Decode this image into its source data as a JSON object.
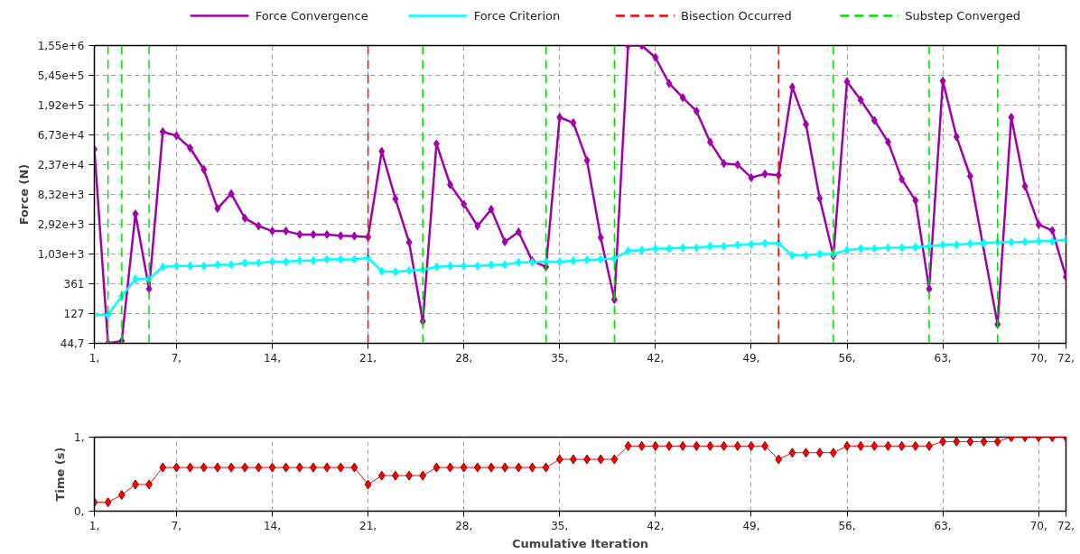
{
  "chart_data": [
    {
      "type": "line",
      "ylabel": "Force (N)",
      "log": "y",
      "grid": true,
      "legend": "top",
      "marker": "diamond",
      "line_style": "solid",
      "x": [
        1,
        2,
        3,
        4,
        5,
        6,
        7,
        8,
        9,
        10,
        11,
        12,
        13,
        14,
        15,
        16,
        17,
        18,
        19,
        20,
        21,
        22,
        23,
        24,
        25,
        26,
        27,
        28,
        29,
        30,
        31,
        32,
        33,
        34,
        35,
        36,
        37,
        38,
        39,
        40,
        41,
        42,
        43,
        44,
        45,
        46,
        47,
        48,
        49,
        50,
        51,
        52,
        53,
        54,
        55,
        56,
        57,
        58,
        59,
        60,
        61,
        62,
        63,
        64,
        65,
        66,
        67,
        68,
        69,
        70,
        71,
        72
      ],
      "xlim": [
        1,
        72
      ],
      "xticks": [
        {
          "value": 1,
          "label": "1,"
        },
        {
          "value": 7,
          "label": "7,"
        },
        {
          "value": 14,
          "label": "14,"
        },
        {
          "value": 21,
          "label": "21,"
        },
        {
          "value": 28,
          "label": "28,"
        },
        {
          "value": 35,
          "label": "35,"
        },
        {
          "value": 42,
          "label": "42,"
        },
        {
          "value": 49,
          "label": "49,"
        },
        {
          "value": 56,
          "label": "56,"
        },
        {
          "value": 63,
          "label": "63,"
        },
        {
          "value": 70,
          "label": "70,"
        },
        {
          "value": 72,
          "label": "72,"
        }
      ],
      "ylim": [
        44.7,
        1550000
      ],
      "yticks": [
        {
          "value": 44.7,
          "label": "44,7"
        },
        {
          "value": 127,
          "label": "127"
        },
        {
          "value": 361,
          "label": "361"
        },
        {
          "value": 1030,
          "label": "1,03e+3"
        },
        {
          "value": 2920,
          "label": "2,92e+3"
        },
        {
          "value": 8320,
          "label": "8,32e+3"
        },
        {
          "value": 23700,
          "label": "2,37e+4"
        },
        {
          "value": 67300,
          "label": "6,73e+4"
        },
        {
          "value": 192000,
          "label": "1,92e+5"
        },
        {
          "value": 545000,
          "label": "5,45e+5"
        },
        {
          "value": 1550000,
          "label": "1,55e+6"
        }
      ],
      "series": [
        {
          "name": "Force Convergence",
          "color": "#a000a8",
          "x": [
            1,
            2,
            3,
            4,
            5,
            6,
            7,
            8,
            9,
            10,
            11,
            12,
            13,
            14,
            15,
            16,
            17,
            18,
            19,
            20,
            21,
            22,
            23,
            24,
            25,
            26,
            27,
            28,
            29,
            30,
            31,
            32,
            33,
            34,
            35,
            36,
            37,
            38,
            39,
            40,
            41,
            42,
            43,
            44,
            45,
            46,
            47,
            48,
            49,
            50,
            51,
            52,
            53,
            54,
            55,
            56,
            57,
            58,
            59,
            60,
            61,
            62,
            63,
            64,
            65,
            67,
            68,
            69,
            70,
            71,
            72
          ],
          "values": [
            40700,
            44.7,
            48.6,
            4200,
            302,
            75300,
            65500,
            42500,
            19900,
            5080,
            8550,
            3610,
            2750,
            2300,
            2300,
            2040,
            2040,
            2040,
            1950,
            1930,
            1870,
            37800,
            7120,
            1550,
            97,
            49200,
            11700,
            5890,
            2750,
            4930,
            1580,
            2230,
            809,
            656,
            125000,
            103000,
            27400,
            1830,
            208,
            1550000,
            1550000,
            1020000,
            410000,
            249000,
            155000,
            52400,
            24700,
            23700,
            15000,
            17100,
            16300,
            362000,
            98000,
            7280,
            968,
            438000,
            230000,
            112000,
            52400,
            14200,
            6750,
            302,
            447000,
            62800,
            15800,
            87,
            125000,
            11100,
            2890,
            2350,
            461
          ]
        },
        {
          "name": "Force Criterion",
          "color": "#00ffff",
          "values": [
            121,
            121,
            234,
            428,
            428,
            656,
            676,
            676,
            676,
            706,
            706,
            752,
            752,
            783,
            783,
            817,
            817,
            853,
            853,
            853,
            899,
            561,
            550,
            573,
            590,
            656,
            676,
            676,
            676,
            706,
            706,
            767,
            767,
            783,
            783,
            809,
            834,
            853,
            880,
            1150,
            1180,
            1240,
            1240,
            1280,
            1280,
            1350,
            1350,
            1410,
            1450,
            1500,
            1500,
            980,
            980,
            1030,
            1030,
            1180,
            1240,
            1240,
            1280,
            1280,
            1310,
            1350,
            1420,
            1420,
            1480,
            1510,
            1550,
            1550,
            1580,
            1610,
            1610,
            1700
          ]
        }
      ],
      "ref_lines": [
        {
          "axis": "x",
          "value": 21,
          "label": "Bisection Occurred",
          "color": "#ff0000",
          "line_style": "dashed"
        },
        {
          "axis": "x",
          "value": 51,
          "color": "#ff0000",
          "line_style": "dashed"
        },
        {
          "axis": "x",
          "value": 2,
          "label": "Substep Converged",
          "color": "#00dd00",
          "line_style": "dashed"
        },
        {
          "axis": "x",
          "value": 3,
          "color": "#00dd00",
          "line_style": "dashed"
        },
        {
          "axis": "x",
          "value": 5,
          "color": "#00dd00",
          "line_style": "dashed"
        },
        {
          "axis": "x",
          "value": 25,
          "color": "#00dd00",
          "line_style": "dashed"
        },
        {
          "axis": "x",
          "value": 34,
          "color": "#00dd00",
          "line_style": "dashed"
        },
        {
          "axis": "x",
          "value": 39,
          "color": "#00dd00",
          "line_style": "dashed"
        },
        {
          "axis": "x",
          "value": 55,
          "color": "#00dd00",
          "line_style": "dashed"
        },
        {
          "axis": "x",
          "value": 62,
          "color": "#00dd00",
          "line_style": "dashed"
        },
        {
          "axis": "x",
          "value": 67,
          "color": "#00dd00",
          "line_style": "dashed"
        }
      ]
    },
    {
      "type": "line",
      "xlabel": "Cumulative Iteration",
      "ylabel": "Time (s)",
      "grid": "x",
      "marker": "diamond",
      "line_style": "solid",
      "x": [
        1,
        2,
        3,
        4,
        5,
        6,
        7,
        8,
        9,
        10,
        11,
        12,
        13,
        14,
        15,
        16,
        17,
        18,
        19,
        20,
        21,
        22,
        23,
        24,
        25,
        26,
        27,
        28,
        29,
        30,
        31,
        32,
        33,
        34,
        35,
        36,
        37,
        38,
        39,
        40,
        41,
        42,
        43,
        44,
        45,
        46,
        47,
        48,
        49,
        50,
        51,
        52,
        53,
        54,
        55,
        56,
        57,
        58,
        59,
        60,
        61,
        62,
        63,
        64,
        65,
        66,
        67,
        68,
        69,
        70,
        71,
        72
      ],
      "xlim": [
        1,
        72
      ],
      "xticks": [
        {
          "value": 1,
          "label": "1,"
        },
        {
          "value": 7,
          "label": "7,"
        },
        {
          "value": 14,
          "label": "14,"
        },
        {
          "value": 21,
          "label": "21,"
        },
        {
          "value": 28,
          "label": "28,"
        },
        {
          "value": 35,
          "label": "35,"
        },
        {
          "value": 42,
          "label": "42,"
        },
        {
          "value": 49,
          "label": "49,"
        },
        {
          "value": 56,
          "label": "56,"
        },
        {
          "value": 63,
          "label": "63,"
        },
        {
          "value": 70,
          "label": "70,"
        },
        {
          "value": 72,
          "label": "72,"
        }
      ],
      "ylim": [
        0,
        1
      ],
      "yticks": [
        {
          "value": 0,
          "label": "0,"
        },
        {
          "value": 1,
          "label": "1,"
        }
      ],
      "series": [
        {
          "color": "#ff0000",
          "values": [
            0.12,
            0.12,
            0.22,
            0.36,
            0.36,
            0.59,
            0.59,
            0.59,
            0.59,
            0.59,
            0.59,
            0.59,
            0.59,
            0.59,
            0.59,
            0.59,
            0.59,
            0.59,
            0.59,
            0.59,
            0.36,
            0.48,
            0.48,
            0.48,
            0.48,
            0.59,
            0.59,
            0.59,
            0.59,
            0.59,
            0.59,
            0.59,
            0.59,
            0.59,
            0.7,
            0.7,
            0.7,
            0.7,
            0.7,
            0.88,
            0.88,
            0.88,
            0.88,
            0.88,
            0.88,
            0.88,
            0.88,
            0.88,
            0.88,
            0.88,
            0.7,
            0.79,
            0.79,
            0.79,
            0.79,
            0.88,
            0.88,
            0.88,
            0.88,
            0.88,
            0.88,
            0.88,
            0.94,
            0.94,
            0.94,
            0.94,
            0.94,
            1,
            1,
            1,
            1,
            1
          ]
        }
      ]
    }
  ]
}
